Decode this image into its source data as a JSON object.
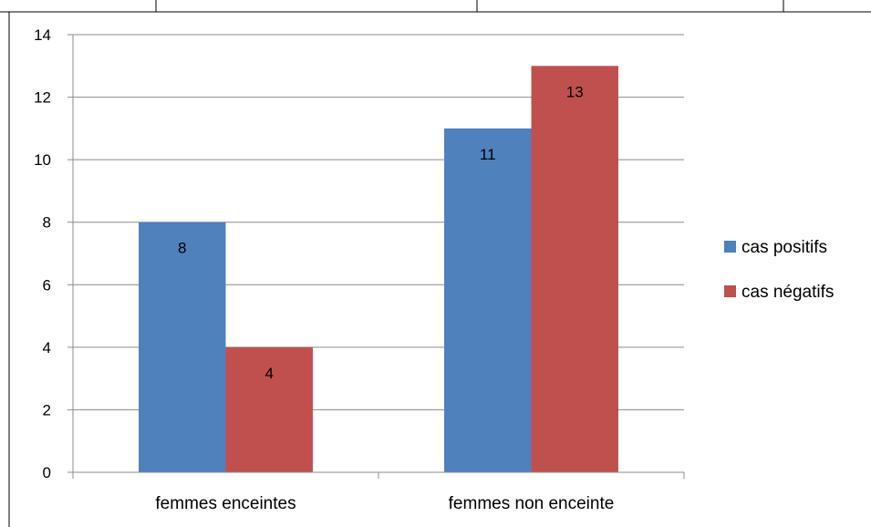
{
  "chart_data": {
    "type": "bar",
    "title": "",
    "xlabel": "",
    "ylabel": "",
    "categories": [
      "femmes enceintes",
      "femmes non enceinte"
    ],
    "series": [
      {
        "name": "cas positifs",
        "values": [
          8,
          11
        ],
        "color": "#4f81bd"
      },
      {
        "name": "cas négatifs",
        "values": [
          4,
          13
        ],
        "color": "#c0504d"
      }
    ],
    "ylim": [
      0,
      14
    ],
    "yticks": [
      0,
      2,
      4,
      6,
      8,
      10,
      12,
      14
    ],
    "grid": true,
    "legend_position": "right",
    "data_labels": true
  },
  "colors": {
    "gridline": "#8c8c8c",
    "axis": "#8c8c8c",
    "table_border": "#000000"
  }
}
